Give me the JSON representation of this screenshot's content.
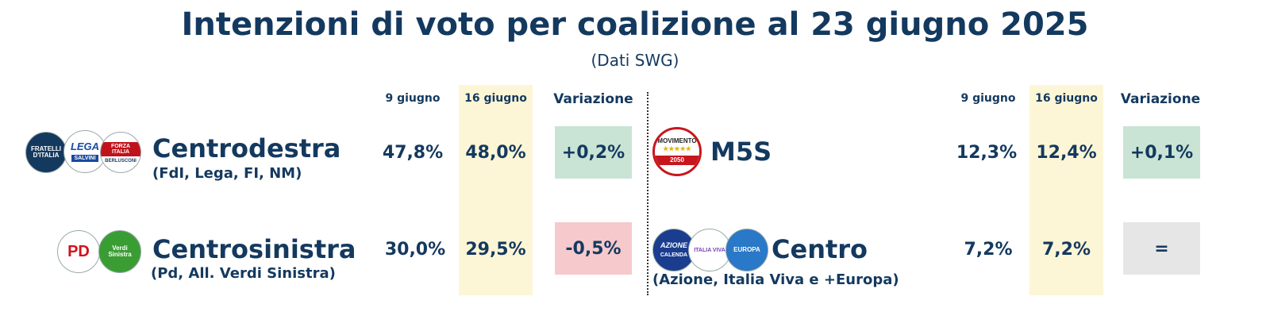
{
  "title": "Intenzioni di voto per coalizione al 23 giugno 2025",
  "subtitle": "(Dati SWG)",
  "headers": {
    "date1": "9 giugno",
    "date2": "16 giugno",
    "variation": "Variazione"
  },
  "colors": {
    "positive": "#c9e4d4",
    "negative": "#f6c9cc",
    "neutral": "#e6e6e6",
    "highlight": "#fdf6d6",
    "text": "#14395f"
  },
  "logos": {
    "fdi": "FRATELLI D'ITALIA",
    "lega": "LEGA",
    "lega_sub": "SALVINI",
    "fi": "FORZA ITALIA",
    "fi_sub": "BERLUSCONI",
    "pd": "PD",
    "avs": "Verdi Sinistra",
    "m5s": "MOVIMENTO",
    "m5s_sub": "2050",
    "azione": "AZIONE",
    "azione_sub": "CALENDA",
    "iv": "ITALIA VIVA",
    "europa": "EUROPA"
  },
  "chart_data": {
    "type": "table",
    "title": "Intenzioni di voto per coalizione al 23 giugno 2025",
    "subtitle": "(Dati SWG)",
    "columns": [
      "9 giugno",
      "16 giugno",
      "Variazione"
    ],
    "rows": [
      {
        "name": "Centrodestra",
        "parties": "(FdI, Lega, FI, NM)",
        "v1": "47,8%",
        "v2": "48,0%",
        "var": "+0,2%",
        "trend": "positive",
        "values": [
          47.8,
          48.0,
          0.2
        ]
      },
      {
        "name": "Centrosinistra",
        "parties": "(Pd, All. Verdi Sinistra)",
        "v1": "30,0%",
        "v2": "29,5%",
        "var": "-0,5%",
        "trend": "negative",
        "values": [
          30.0,
          29.5,
          -0.5
        ]
      },
      {
        "name": "M5S",
        "parties": "",
        "v1": "12,3%",
        "v2": "12,4%",
        "var": "+0,1%",
        "trend": "positive",
        "values": [
          12.3,
          12.4,
          0.1
        ]
      },
      {
        "name": "Centro",
        "parties": "(Azione, Italia Viva e +Europa)",
        "v1": "7,2%",
        "v2": "7,2%",
        "var": "=",
        "trend": "neutral",
        "values": [
          7.2,
          7.2,
          0.0
        ]
      }
    ]
  }
}
